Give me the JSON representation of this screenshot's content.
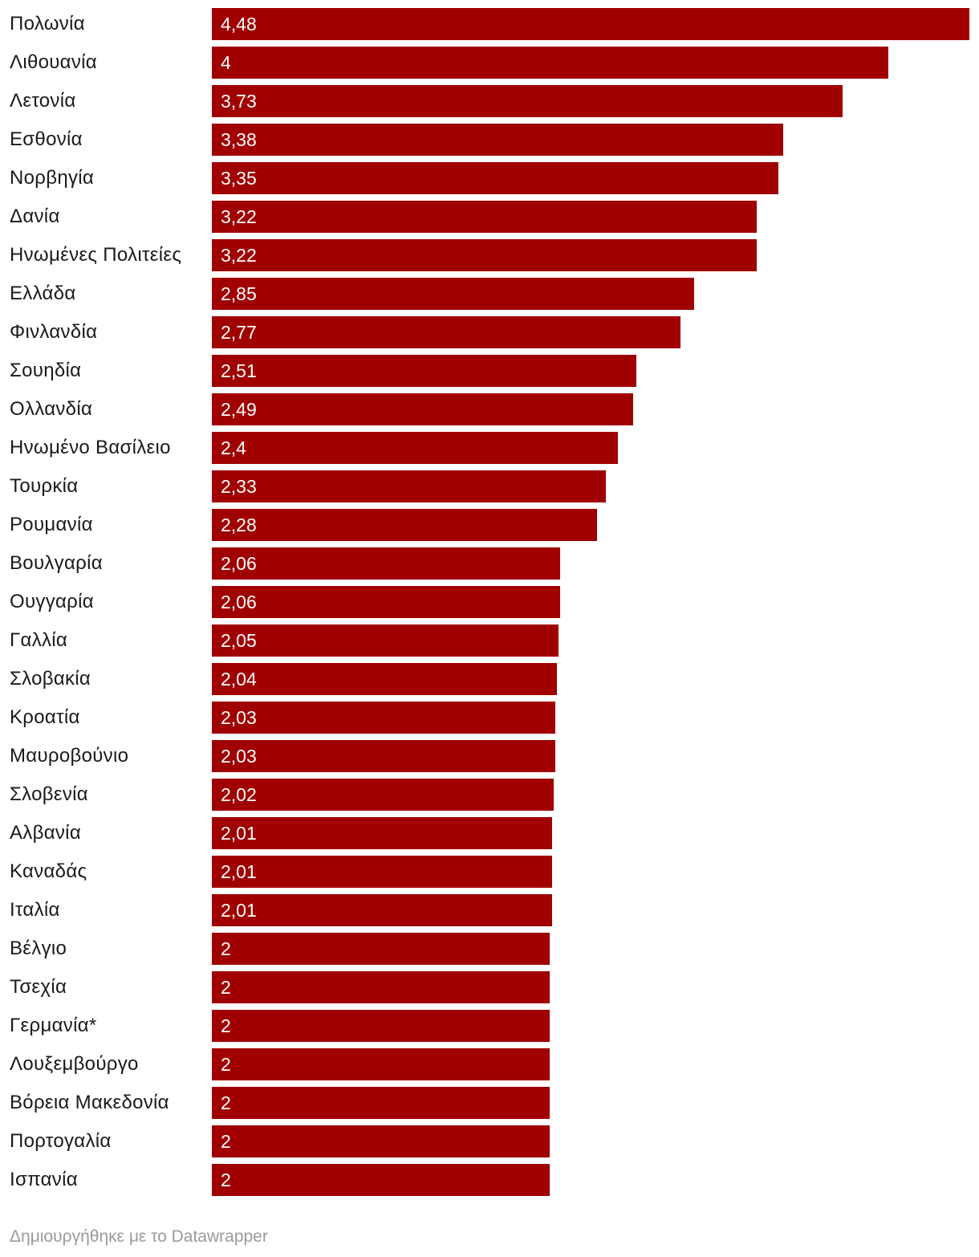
{
  "colors": {
    "bar": "#a00000",
    "label": "#1a1a1a",
    "value": "#ffffff",
    "footer": "#9a9a9a"
  },
  "chart_data": {
    "type": "bar",
    "orientation": "horizontal",
    "title": "",
    "xlabel": "",
    "ylabel": "",
    "xlim": [
      0,
      4.48
    ],
    "categories": [
      "Πολωνία",
      "Λιθουανία",
      "Λετονία",
      "Εσθονία",
      "Νορβηγία",
      "Δανία",
      "Ηνωμένες Πολιτείες",
      "Ελλάδα",
      "Φινλανδία",
      "Σουηδία",
      "Ολλανδία",
      "Ηνωμένο Βασίλειο",
      "Τουρκία",
      "Ρουμανία",
      "Βουλγαρία",
      "Ουγγαρία",
      "Γαλλία",
      "Σλοβακία",
      "Κροατία",
      "Μαυροβούνιο",
      "Σλοβενία",
      "Αλβανία",
      "Καναδάς",
      "Ιταλία",
      "Βέλγιο",
      "Τσεχία",
      "Γερμανία*",
      "Λουξεμβούργο",
      "Βόρεια Μακεδονία",
      "Πορτογαλία",
      "Ισπανία"
    ],
    "values": [
      4.48,
      4,
      3.73,
      3.38,
      3.35,
      3.22,
      3.22,
      2.85,
      2.77,
      2.51,
      2.49,
      2.4,
      2.33,
      2.28,
      2.06,
      2.06,
      2.05,
      2.04,
      2.03,
      2.03,
      2.02,
      2.01,
      2.01,
      2.01,
      2,
      2,
      2,
      2,
      2,
      2,
      2
    ],
    "value_labels": [
      "4,48",
      "4",
      "3,73",
      "3,38",
      "3,35",
      "3,22",
      "3,22",
      "2,85",
      "2,77",
      "2,51",
      "2,49",
      "2,4",
      "2,33",
      "2,28",
      "2,06",
      "2,06",
      "2,05",
      "2,04",
      "2,03",
      "2,03",
      "2,02",
      "2,01",
      "2,01",
      "2,01",
      "2",
      "2",
      "2",
      "2",
      "2",
      "2",
      "2"
    ]
  },
  "footer": {
    "credit": "Δημιουργήθηκε με το Datawrapper"
  }
}
